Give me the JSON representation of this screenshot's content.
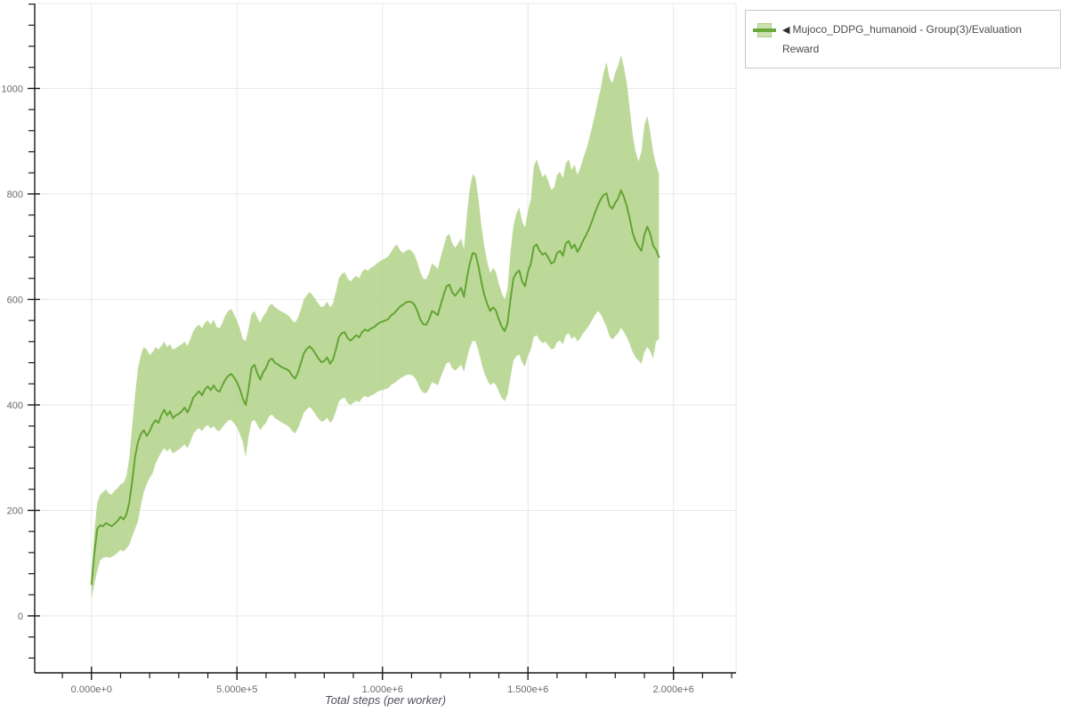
{
  "legend": {
    "collapse_icon": "◀",
    "label": "Mujoco_DDPG_humanoid - Group(3)/Evaluation Reward"
  },
  "colors": {
    "line": "#64a433",
    "band": "rgba(172,208,129,0.8)",
    "grid": "#e8e8e8",
    "axis": "#1a1a1a",
    "tick_label": "#6a6a6a"
  },
  "chart_data": {
    "type": "line",
    "title": "",
    "xlabel": "Total steps (per worker)",
    "ylabel": "",
    "legend_position": "top-right-outside",
    "grid": true,
    "x_axis": {
      "min": -195000,
      "max": 2215000,
      "minor_step": 100000,
      "tick_values": [
        0,
        500000,
        1000000,
        1500000,
        2000000
      ],
      "tick_labels": [
        "0.000e+0",
        "5.000e+5",
        "1.000e+6",
        "1.500e+6",
        "2.000e+6"
      ]
    },
    "y_axis": {
      "min": -108,
      "max": 1161,
      "minor_step": 40,
      "tick_values": [
        0,
        200,
        400,
        600,
        800,
        1000
      ],
      "tick_labels": [
        "0",
        "200",
        "400",
        "600",
        "800",
        "1000"
      ]
    },
    "x_start": 0,
    "x_interval": 10000,
    "n_points": 196,
    "series": [
      {
        "name": "Mujoco_DDPG_humanoid - Group(3)/Evaluation Reward",
        "mean": [
          60,
          118,
          165,
          172,
          170,
          176,
          173,
          170,
          175,
          180,
          188,
          183,
          192,
          215,
          255,
          302,
          330,
          345,
          352,
          341,
          350,
          363,
          371,
          366,
          380,
          391,
          380,
          388,
          375,
          380,
          383,
          388,
          395,
          386,
          398,
          414,
          420,
          426,
          418,
          430,
          435,
          428,
          437,
          428,
          425,
          437,
          448,
          455,
          459,
          452,
          443,
          430,
          412,
          400,
          430,
          470,
          476,
          460,
          448,
          462,
          470,
          484,
          488,
          480,
          477,
          473,
          470,
          468,
          464,
          455,
          450,
          462,
          480,
          498,
          506,
          511,
          505,
          497,
          488,
          481,
          483,
          490,
          478,
          486,
          505,
          528,
          536,
          538,
          527,
          522,
          527,
          532,
          528,
          538,
          543,
          540,
          545,
          547,
          552,
          556,
          558,
          560,
          563,
          570,
          574,
          580,
          586,
          590,
          594,
          596,
          595,
          590,
          578,
          562,
          553,
          552,
          562,
          578,
          575,
          570,
          590,
          608,
          625,
          628,
          613,
          607,
          614,
          622,
          605,
          640,
          668,
          688,
          686,
          663,
          633,
          608,
          592,
          578,
          585,
          579,
          562,
          548,
          540,
          555,
          600,
          640,
          650,
          655,
          634,
          625,
          652,
          668,
          700,
          704,
          692,
          685,
          688,
          679,
          668,
          671,
          688,
          692,
          683,
          706,
          711,
          697,
          704,
          690,
          700,
          712,
          722,
          734,
          748,
          764,
          778,
          790,
          798,
          801,
          778,
          772,
          783,
          792,
          807,
          794,
          776,
          752,
          726,
          710,
          700,
          692,
          722,
          738,
          725,
          702,
          694,
          680
        ],
        "band_lower": [
          32,
          60,
          85,
          105,
          110,
          112,
          110,
          112,
          115,
          120,
          125,
          122,
          128,
          135,
          150,
          165,
          180,
          210,
          235,
          250,
          262,
          270,
          288,
          300,
          310,
          318,
          312,
          318,
          308,
          312,
          315,
          320,
          325,
          318,
          330,
          345,
          352,
          356,
          350,
          358,
          362,
          355,
          360,
          352,
          350,
          358,
          365,
          370,
          372,
          365,
          358,
          345,
          330,
          300,
          340,
          368,
          372,
          362,
          352,
          360,
          366,
          378,
          382,
          375,
          372,
          368,
          365,
          362,
          358,
          350,
          346,
          356,
          370,
          385,
          392,
          396,
          390,
          382,
          374,
          368,
          370,
          376,
          366,
          372,
          388,
          406,
          412,
          414,
          404,
          400,
          404,
          408,
          405,
          413,
          417,
          414,
          418,
          420,
          424,
          427,
          428,
          430,
          432,
          438,
          441,
          445,
          450,
          453,
          456,
          458,
          457,
          453,
          443,
          430,
          423,
          422,
          430,
          443,
          441,
          437,
          452,
          466,
          479,
          481,
          469,
          465,
          470,
          476,
          463,
          488,
          508,
          522,
          520,
          503,
          480,
          460,
          448,
          437,
          442,
          438,
          425,
          413,
          407,
          420,
          453,
          484,
          492,
          496,
          480,
          473,
          493,
          505,
          529,
          532,
          523,
          517,
          520,
          513,
          505,
          507,
          519,
          522,
          515,
          532,
          536,
          525,
          530,
          520,
          527,
          536,
          543,
          551,
          560,
          570,
          578,
          572,
          560,
          548,
          530,
          524,
          530,
          536,
          546,
          538,
          528,
          515,
          500,
          490,
          484,
          478,
          500,
          510,
          502,
          488,
          520,
          525
        ],
        "band_upper": [
          75,
          160,
          215,
          230,
          235,
          240,
          232,
          230,
          238,
          242,
          250,
          252,
          265,
          300,
          360,
          420,
          470,
          495,
          510,
          505,
          495,
          500,
          510,
          505,
          512,
          520,
          510,
          515,
          505,
          508,
          512,
          515,
          520,
          512,
          525,
          540,
          548,
          552,
          545,
          556,
          560,
          552,
          562,
          548,
          545,
          556,
          570,
          578,
          582,
          572,
          560,
          545,
          525,
          521,
          545,
          572,
          578,
          565,
          556,
          568,
          575,
          588,
          592,
          585,
          582,
          578,
          575,
          572,
          568,
          560,
          556,
          566,
          582,
          600,
          608,
          614,
          608,
          600,
          592,
          585,
          588,
          596,
          585,
          592,
          615,
          640,
          648,
          652,
          640,
          634,
          640,
          645,
          640,
          652,
          658,
          654,
          660,
          663,
          668,
          672,
          675,
          678,
          682,
          690,
          700,
          704,
          694,
          688,
          692,
          695,
          692,
          685,
          670,
          652,
          640,
          638,
          650,
          668,
          664,
          658,
          680,
          700,
          720,
          724,
          706,
          698,
          706,
          716,
          695,
          760,
          810,
          838,
          830,
          790,
          740,
          700,
          672,
          650,
          660,
          652,
          630,
          612,
          600,
          622,
          690,
          740,
          762,
          775,
          748,
          736,
          768,
          790,
          852,
          866,
          848,
          832,
          838,
          824,
          808,
          812,
          836,
          842,
          830,
          858,
          866,
          845,
          856,
          836,
          850,
          868,
          884,
          904,
          926,
          950,
          976,
          1000,
          1030,
          1050,
          1020,
          1010,
          1030,
          1044,
          1063,
          1040,
          1008,
          960,
          912,
          880,
          862,
          880,
          930,
          948,
          920,
          880,
          856,
          838
        ]
      }
    ]
  }
}
